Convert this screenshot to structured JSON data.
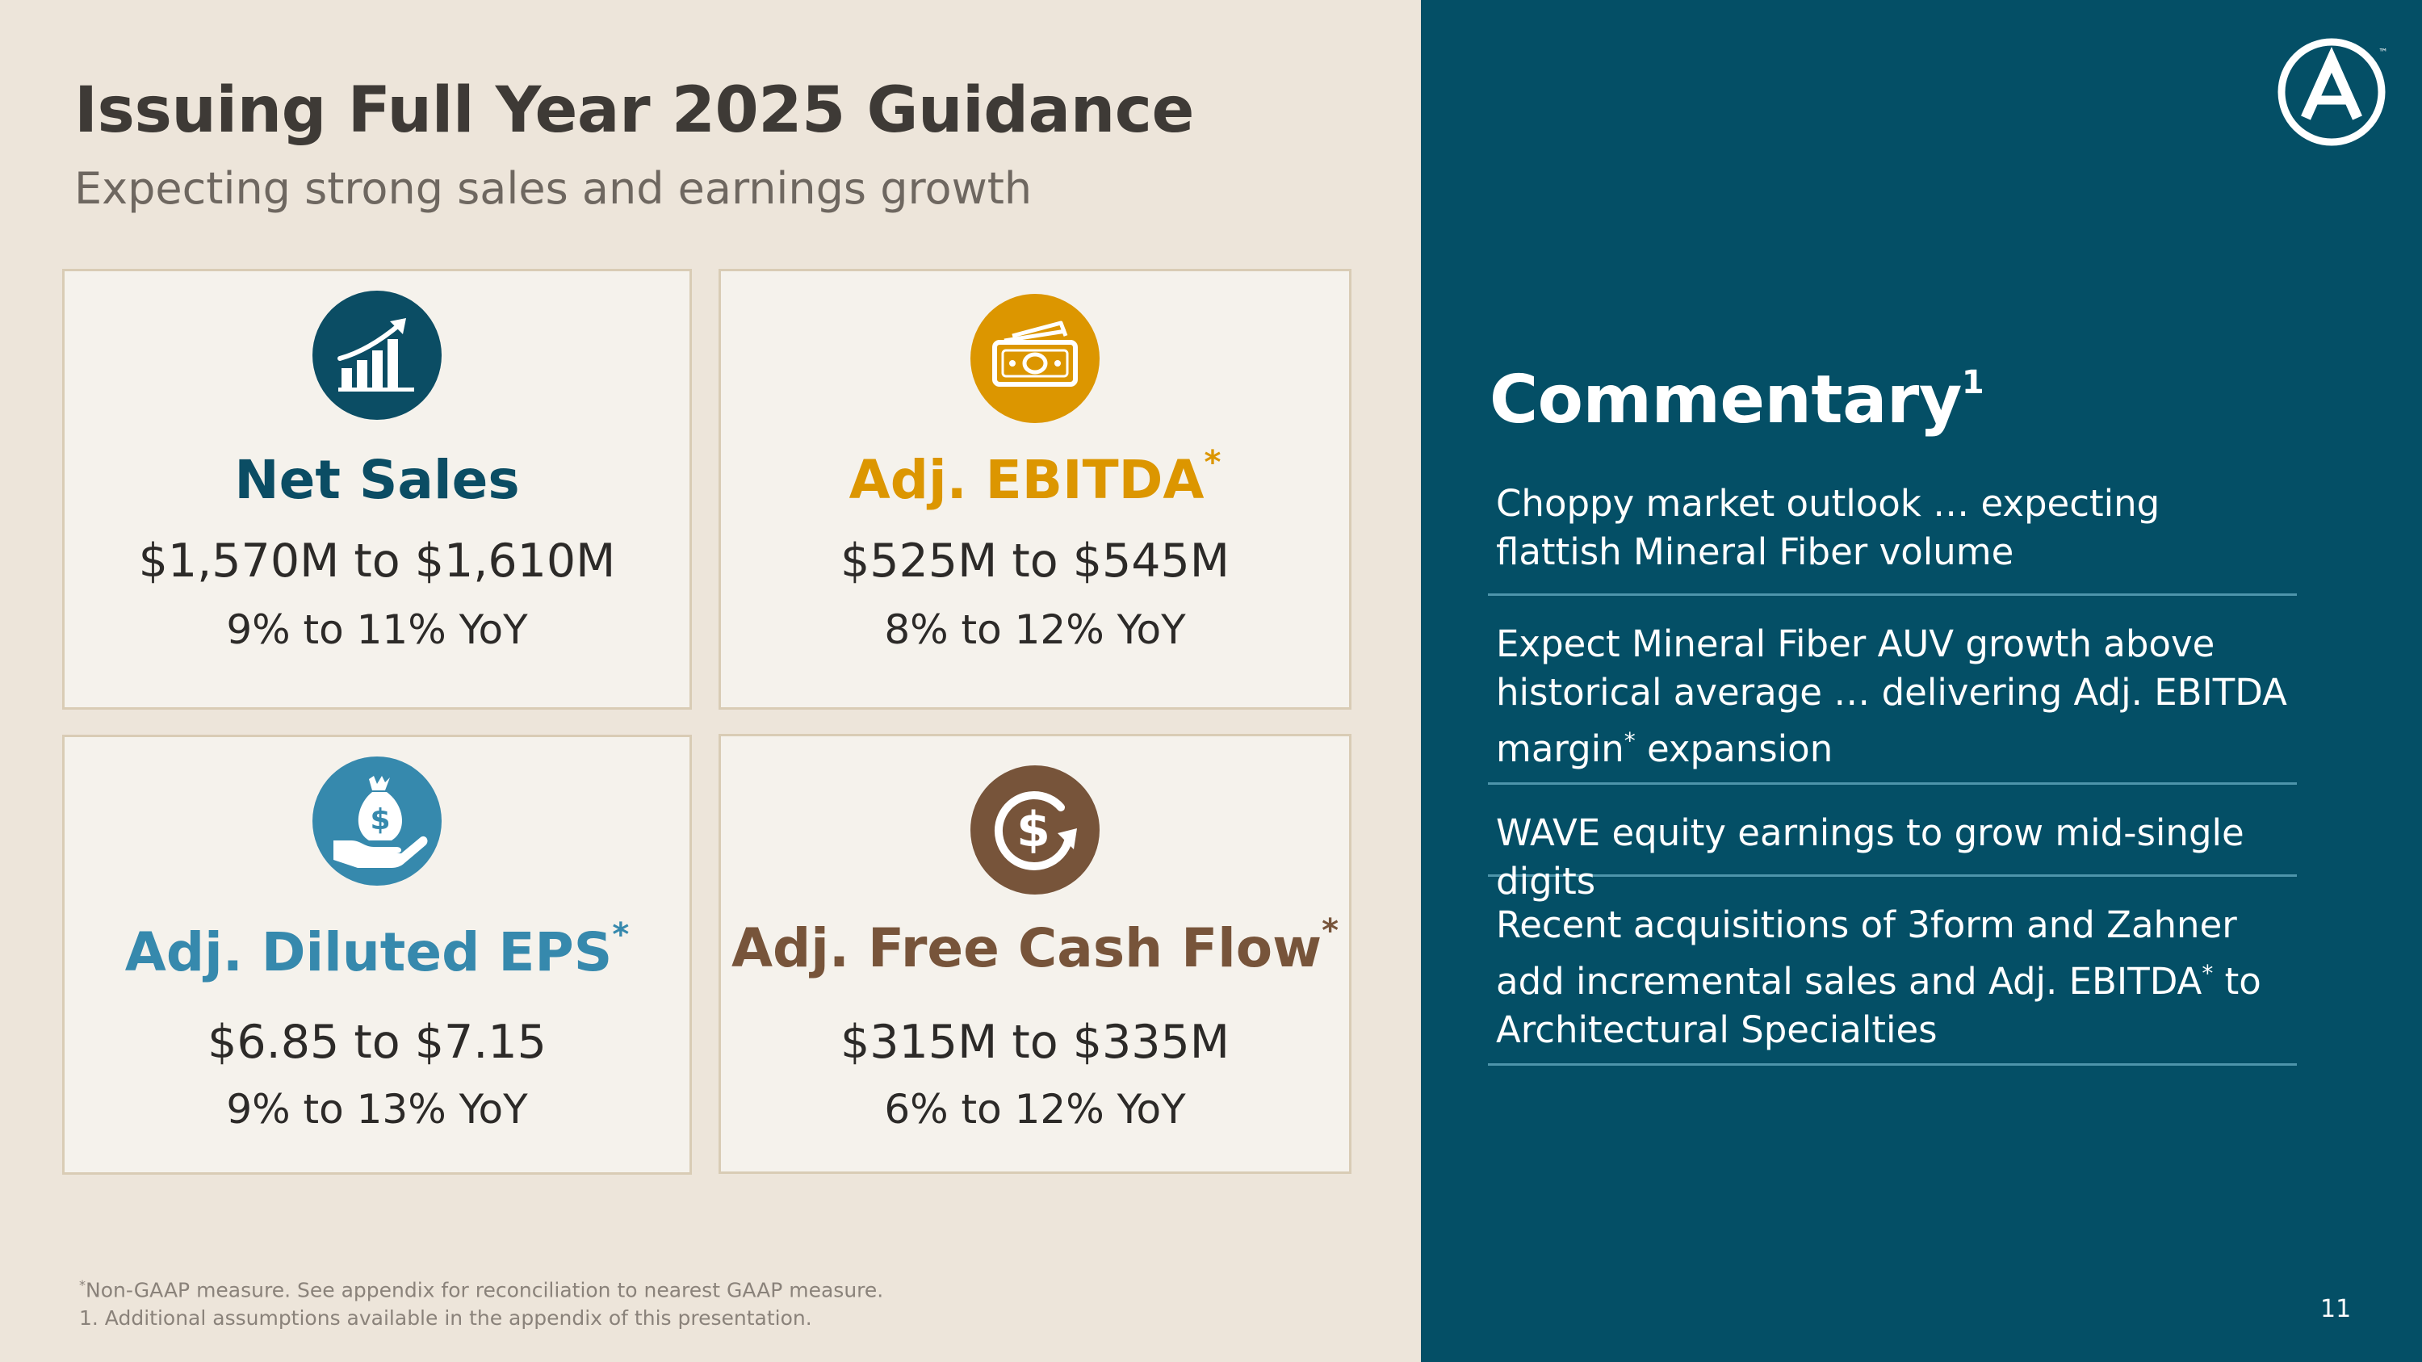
{
  "header": {
    "title": "Issuing Full Year 2025 Guidance",
    "subtitle": "Expecting strong sales and earnings growth"
  },
  "cards": [
    {
      "metric": "Net Sales",
      "asterisk": "",
      "range": "$1,570M to $1,610M",
      "yoy": "9% to 11% YoY",
      "icon": "bar-chart-growth-icon",
      "color": "#0b4d64"
    },
    {
      "metric": "Adj. EBITDA",
      "asterisk": "*",
      "range": "$525M to $545M",
      "yoy": "8% to 12% YoY",
      "icon": "cash-bills-icon",
      "color": "#dc9600"
    },
    {
      "metric": "Adj. Diluted EPS",
      "asterisk": "*",
      "range": "$6.85 to $7.15",
      "yoy": "9% to 13% YoY",
      "icon": "money-bag-hand-icon",
      "color": "#3689ad"
    },
    {
      "metric": "Adj. Free Cash Flow",
      "asterisk": "*",
      "range": "$315M to $335M",
      "yoy": "6% to 12% YoY",
      "icon": "dollar-cycle-icon",
      "color": "#77543a"
    }
  ],
  "commentary": {
    "title": "Commentary",
    "title_sup": "1",
    "bullets": [
      {
        "text": "Choppy market outlook … expecting flattish Mineral Fiber volume"
      },
      {
        "before": "Expect Mineral Fiber AUV growth above historical average … delivering Adj. EBITDA margin",
        "sup": "*",
        "after": " expansion"
      },
      {
        "text": "WAVE equity earnings to grow mid-single digits"
      },
      {
        "before": "Recent acquisitions of 3form and Zahner add incremental sales and Adj. EBITDA",
        "sup": "*",
        "after": " to Architectural Specialties"
      }
    ]
  },
  "footnotes": {
    "note1_marker": "*",
    "note1": "Non-GAAP measure. See appendix for reconciliation to nearest GAAP measure.",
    "note2": "1. Additional assumptions available in the appendix of this presentation."
  },
  "logo": {
    "icon": "armstrong-a-logo-icon",
    "tm": "™"
  },
  "page_number": "11"
}
